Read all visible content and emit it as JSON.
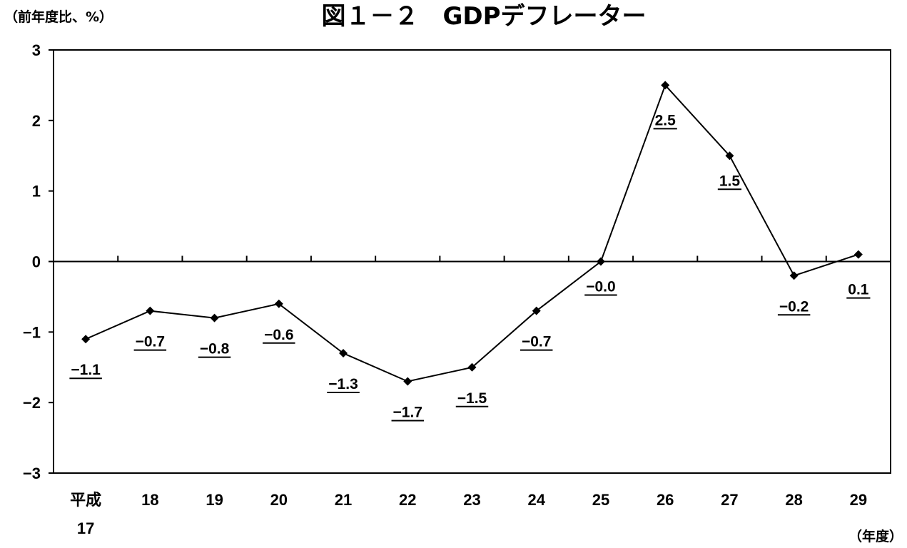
{
  "chart_data": {
    "type": "line",
    "title": "図１－２　GDPデフレーター",
    "ylabel": "（前年度比、%）",
    "xlabel": "（年度）",
    "ylim": [
      -3,
      3
    ],
    "yticks": [
      "3",
      "2",
      "1",
      "0",
      "−1",
      "−2",
      "−3"
    ],
    "categories": [
      [
        "平成",
        "17"
      ],
      [
        "18"
      ],
      [
        "19"
      ],
      [
        "20"
      ],
      [
        "21"
      ],
      [
        "22"
      ],
      [
        "23"
      ],
      [
        "24"
      ],
      [
        "25"
      ],
      [
        "26"
      ],
      [
        "27"
      ],
      [
        "28"
      ],
      [
        "29"
      ]
    ],
    "values": [
      -1.1,
      -0.7,
      -0.8,
      -0.6,
      -1.3,
      -1.7,
      -1.5,
      -0.7,
      -0.0,
      2.5,
      1.5,
      -0.2,
      0.1
    ],
    "data_labels": [
      "−1.1",
      "−0.7",
      "−0.8",
      "−0.6",
      "−1.3",
      "−1.7",
      "−1.5",
      "−0.7",
      "−0.0",
      "2.5",
      "1.5",
      "−0.2",
      "0.1"
    ],
    "series_color": "#000000",
    "marker": "diamond",
    "grid": false
  }
}
